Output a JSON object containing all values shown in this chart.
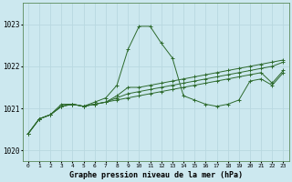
{
  "title": "Graphe pression niveau de la mer (hPa)",
  "bg_color": "#cce8ef",
  "line_color": "#2d6a2d",
  "grid_color": "#b8d8e0",
  "xlim": [
    -0.5,
    23.5
  ],
  "ylim": [
    1019.75,
    1023.5
  ],
  "yticks": [
    1020,
    1021,
    1022,
    1023
  ],
  "xticks": [
    0,
    1,
    2,
    3,
    4,
    5,
    6,
    7,
    8,
    9,
    10,
    11,
    12,
    13,
    14,
    15,
    16,
    17,
    18,
    19,
    20,
    21,
    22,
    23
  ],
  "series": [
    {
      "x": [
        0,
        1,
        2,
        3,
        4,
        5,
        6,
        7,
        8,
        9,
        10,
        11,
        12,
        13,
        14,
        15,
        16,
        17,
        18,
        19,
        20,
        21,
        22,
        23
      ],
      "y": [
        1020.4,
        1020.75,
        1020.85,
        1021.1,
        1021.1,
        1021.05,
        1021.15,
        1021.25,
        1021.55,
        1022.4,
        1022.95,
        1022.95,
        1022.55,
        1022.2,
        1021.3,
        1021.2,
        1021.1,
        1021.05,
        1021.1,
        1021.2,
        1021.65,
        1021.7,
        1021.55,
        1021.85
      ]
    },
    {
      "x": [
        0,
        1,
        2,
        3,
        4,
        5,
        6,
        7,
        8,
        9,
        10,
        11,
        12,
        13,
        14,
        15,
        16,
        17,
        18,
        19,
        20,
        21,
        22,
        23
      ],
      "y": [
        1020.4,
        1020.75,
        1020.85,
        1021.05,
        1021.1,
        1021.05,
        1021.1,
        1021.15,
        1021.3,
        1021.5,
        1021.5,
        1021.55,
        1021.6,
        1021.65,
        1021.7,
        1021.75,
        1021.8,
        1021.85,
        1021.9,
        1021.95,
        1022.0,
        1022.05,
        1022.1,
        1022.15
      ]
    },
    {
      "x": [
        0,
        1,
        2,
        3,
        4,
        5,
        6,
        7,
        8,
        9,
        10,
        11,
        12,
        13,
        14,
        15,
        16,
        17,
        18,
        19,
        20,
        21,
        22,
        23
      ],
      "y": [
        1020.4,
        1020.75,
        1020.85,
        1021.05,
        1021.1,
        1021.05,
        1021.1,
        1021.15,
        1021.25,
        1021.35,
        1021.4,
        1021.45,
        1021.5,
        1021.55,
        1021.6,
        1021.65,
        1021.7,
        1021.75,
        1021.8,
        1021.85,
        1021.9,
        1021.95,
        1022.0,
        1022.1
      ]
    },
    {
      "x": [
        0,
        1,
        2,
        3,
        4,
        5,
        6,
        7,
        8,
        9,
        10,
        11,
        12,
        13,
        14,
        15,
        16,
        17,
        18,
        19,
        20,
        21,
        22,
        23
      ],
      "y": [
        1020.4,
        1020.75,
        1020.85,
        1021.05,
        1021.1,
        1021.05,
        1021.1,
        1021.15,
        1021.2,
        1021.25,
        1021.3,
        1021.35,
        1021.4,
        1021.45,
        1021.5,
        1021.55,
        1021.6,
        1021.65,
        1021.7,
        1021.75,
        1021.8,
        1021.85,
        1021.6,
        1021.9
      ]
    }
  ]
}
